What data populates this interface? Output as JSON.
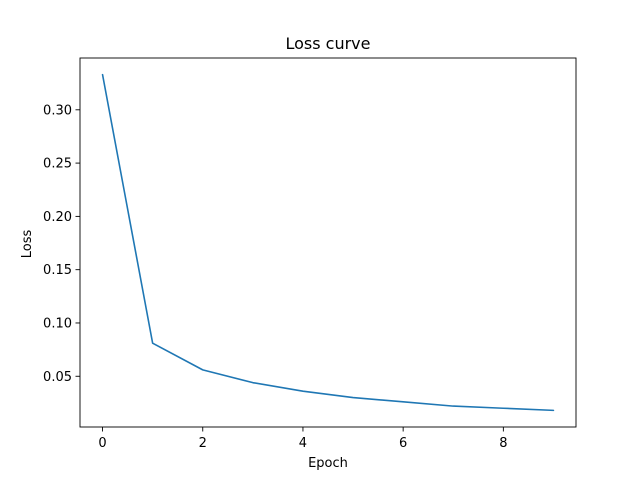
{
  "chart_data": {
    "type": "line",
    "title": "Loss curve",
    "xlabel": "Epoch",
    "ylabel": "Loss",
    "x": [
      0,
      1,
      2,
      3,
      4,
      5,
      6,
      7,
      8,
      9
    ],
    "series": [
      {
        "values": [
          0.333,
          0.081,
          0.056,
          0.044,
          0.036,
          0.03,
          0.026,
          0.022,
          0.02,
          0.018
        ],
        "color": "#1f77b4"
      }
    ],
    "xlim": [
      -0.45,
      9.45
    ],
    "ylim": [
      0.0024,
      0.3486
    ],
    "xticks": [
      0,
      2,
      4,
      6,
      8
    ],
    "xtick_labels": [
      "0",
      "2",
      "4",
      "6",
      "8"
    ],
    "yticks": [
      0.05,
      0.1,
      0.15,
      0.2,
      0.25,
      0.3
    ],
    "ytick_labels": [
      "0.05",
      "0.10",
      "0.15",
      "0.20",
      "0.25",
      "0.30"
    ],
    "grid": false,
    "legend": "none"
  }
}
